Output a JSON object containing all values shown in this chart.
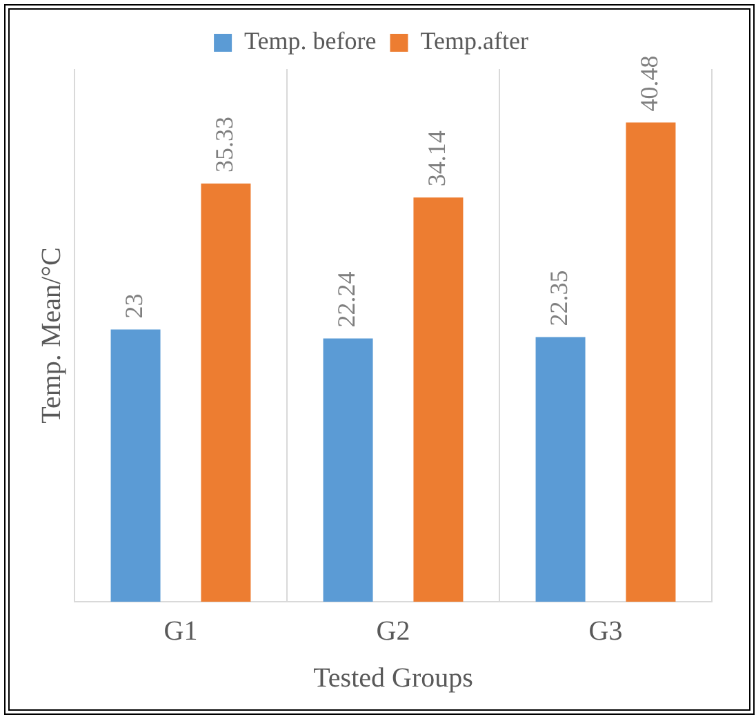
{
  "chart_data": {
    "type": "bar",
    "xlabel": "Tested Groups",
    "ylabel": "Temp. Mean/°C",
    "categories": [
      "G1",
      "G2",
      "G3"
    ],
    "series": [
      {
        "name": "Temp. before",
        "color": "#5b9bd5",
        "values": [
          23,
          22.24,
          22.35
        ]
      },
      {
        "name": "Temp.after",
        "color": "#ed7d31",
        "values": [
          35.33,
          34.14,
          40.48
        ]
      }
    ],
    "data_labels": true,
    "grid": "x",
    "legend": "top",
    "tick_labels": "x"
  }
}
